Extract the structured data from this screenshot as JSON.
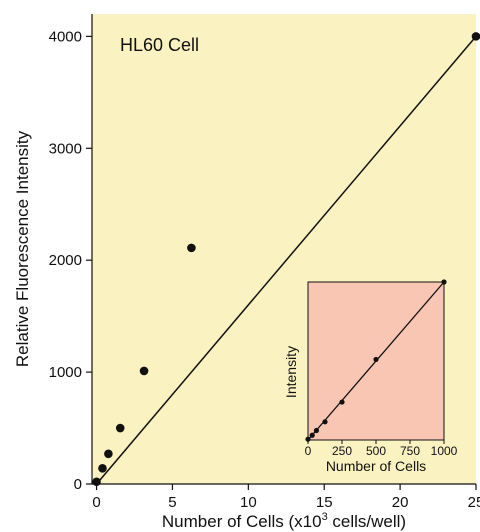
{
  "chart_data": [
    {
      "type": "scatter",
      "annotation": "HL60 Cell",
      "xlabel_main": "Number of Cells  (x10",
      "xlabel_sup": "3",
      "xlabel_tail": " cells/well)",
      "ylabel": "Relative Fluorescence Intensity",
      "xlim": [
        -0.3,
        25
      ],
      "ylim": [
        0,
        4200
      ],
      "x_ticks": [
        0,
        5,
        10,
        15,
        20,
        25
      ],
      "y_ticks": [
        0,
        1000,
        2000,
        3000,
        4000
      ],
      "background": "#fbf2c2",
      "series": [
        {
          "points": [
            {
              "x": 0,
              "y": 20
            },
            {
              "x": 0.39,
              "y": 140
            },
            {
              "x": 0.78,
              "y": 270
            },
            {
              "x": 1.56,
              "y": 500
            },
            {
              "x": 3.13,
              "y": 1010
            },
            {
              "x": 6.25,
              "y": 2110
            },
            {
              "x": 25,
              "y": 4000
            }
          ],
          "fit_line": [
            [
              0,
              0
            ],
            [
              25,
              4000
            ]
          ]
        }
      ],
      "grid": false
    },
    {
      "type": "scatter",
      "inset": true,
      "xlabel": "Number of Cells",
      "ylabel": "Intensity",
      "xlim": [
        0,
        1000
      ],
      "ylim": [
        0,
        1000
      ],
      "x_ticks": [
        0,
        250,
        500,
        750,
        1000
      ],
      "background": "#f9c6b3",
      "series": [
        {
          "points": [
            {
              "x": 0,
              "y": 5
            },
            {
              "x": 31,
              "y": 30
            },
            {
              "x": 62,
              "y": 60
            },
            {
              "x": 125,
              "y": 115
            },
            {
              "x": 250,
              "y": 240
            },
            {
              "x": 500,
              "y": 510
            },
            {
              "x": 1000,
              "y": 1000
            }
          ],
          "fit_line": [
            [
              0,
              0
            ],
            [
              1000,
              1000
            ]
          ]
        }
      ],
      "grid": false
    }
  ]
}
